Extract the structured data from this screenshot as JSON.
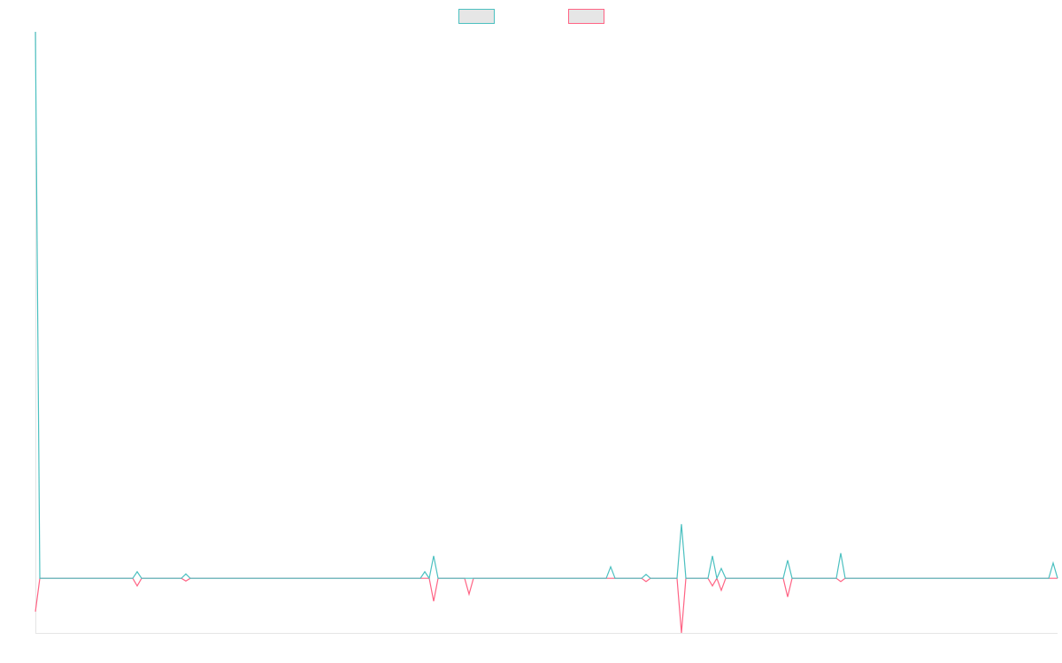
{
  "chart_data": {
    "type": "line",
    "ylim": [
      -1,
      10
    ],
    "series": [
      {
        "color": "#4bc0c0",
        "values": [
          10,
          0,
          0,
          0,
          0,
          0,
          0,
          0,
          0,
          0,
          0,
          0,
          0,
          0,
          0,
          0,
          0,
          0,
          0,
          0,
          0,
          0,
          0,
          0.12,
          0,
          0,
          0,
          0,
          0,
          0,
          0,
          0,
          0,
          0,
          0.08,
          0,
          0,
          0,
          0,
          0,
          0,
          0,
          0,
          0,
          0,
          0,
          0,
          0,
          0,
          0,
          0,
          0,
          0,
          0,
          0,
          0,
          0,
          0,
          0,
          0,
          0,
          0,
          0,
          0,
          0,
          0,
          0,
          0,
          0,
          0,
          0,
          0,
          0,
          0,
          0,
          0,
          0,
          0,
          0,
          0,
          0,
          0,
          0,
          0,
          0,
          0,
          0,
          0,
          0.12,
          0,
          0.41,
          0,
          0,
          0,
          0,
          0,
          0,
          0,
          0,
          0,
          0,
          0,
          0,
          0,
          0,
          0,
          0,
          0,
          0,
          0,
          0,
          0,
          0,
          0,
          0,
          0,
          0,
          0,
          0,
          0,
          0,
          0,
          0,
          0,
          0,
          0,
          0,
          0,
          0,
          0,
          0.21,
          0,
          0,
          0,
          0,
          0,
          0,
          0,
          0.07,
          0,
          0,
          0,
          0,
          0,
          0,
          0,
          0.99,
          0,
          0,
          0,
          0,
          0,
          0,
          0.41,
          0,
          0.18,
          0,
          0,
          0,
          0,
          0,
          0,
          0,
          0,
          0,
          0,
          0,
          0,
          0,
          0,
          0.33,
          0,
          0,
          0,
          0,
          0,
          0,
          0,
          0,
          0,
          0,
          0,
          0.46,
          0,
          0,
          0,
          0,
          0,
          0,
          0,
          0,
          0,
          0,
          0,
          0,
          0,
          0,
          0,
          0,
          0,
          0,
          0,
          0,
          0,
          0,
          0,
          0,
          0,
          0,
          0,
          0,
          0,
          0,
          0,
          0,
          0,
          0,
          0,
          0,
          0,
          0,
          0,
          0,
          0,
          0,
          0,
          0,
          0,
          0,
          0,
          0.28,
          0
        ]
      },
      {
        "color": "#ff6384",
        "values": [
          -0.61,
          0,
          0,
          0,
          0,
          0,
          0,
          0,
          0,
          0,
          0,
          0,
          0,
          0,
          0,
          0,
          0,
          0,
          0,
          0,
          0,
          0,
          0,
          -0.14,
          0,
          0,
          0,
          0,
          0,
          0,
          0,
          0,
          0,
          0,
          -0.05,
          0,
          0,
          0,
          0,
          0,
          0,
          0,
          0,
          0,
          0,
          0,
          0,
          0,
          0,
          0,
          0,
          0,
          0,
          0,
          0,
          0,
          0,
          0,
          0,
          0,
          0,
          0,
          0,
          0,
          0,
          0,
          0,
          0,
          0,
          0,
          0,
          0,
          0,
          0,
          0,
          0,
          0,
          0,
          0,
          0,
          0,
          0,
          0,
          0,
          0,
          0,
          0,
          0,
          0,
          0,
          -0.42,
          0,
          0,
          0,
          0,
          0,
          0,
          0,
          -0.29,
          0,
          0,
          0,
          0,
          0,
          0,
          0,
          0,
          0,
          0,
          0,
          0,
          0,
          0,
          0,
          0,
          0,
          0,
          0,
          0,
          0,
          0,
          0,
          0,
          0,
          0,
          0,
          0,
          0,
          0,
          0,
          0,
          0,
          0,
          0,
          0,
          0,
          0,
          0,
          -0.06,
          0,
          0,
          0,
          0,
          0,
          0,
          0,
          -1,
          0,
          0,
          0,
          0,
          0,
          0,
          -0.14,
          0,
          -0.22,
          0,
          0,
          0,
          0,
          0,
          0,
          0,
          0,
          0,
          0,
          0,
          0,
          0,
          0,
          -0.34,
          0,
          0,
          0,
          0,
          0,
          0,
          0,
          0,
          0,
          0,
          0,
          -0.06,
          0,
          0,
          0,
          0,
          0,
          0,
          0,
          0,
          0,
          0,
          0,
          0,
          0,
          0,
          0,
          0,
          0,
          0,
          0,
          0,
          0,
          0,
          0,
          0,
          0,
          0,
          0,
          0,
          0,
          0,
          0,
          0,
          0,
          0,
          0,
          0,
          0,
          0,
          0,
          0,
          0,
          0,
          0,
          0,
          0,
          0,
          0,
          0,
          0
        ]
      }
    ]
  }
}
